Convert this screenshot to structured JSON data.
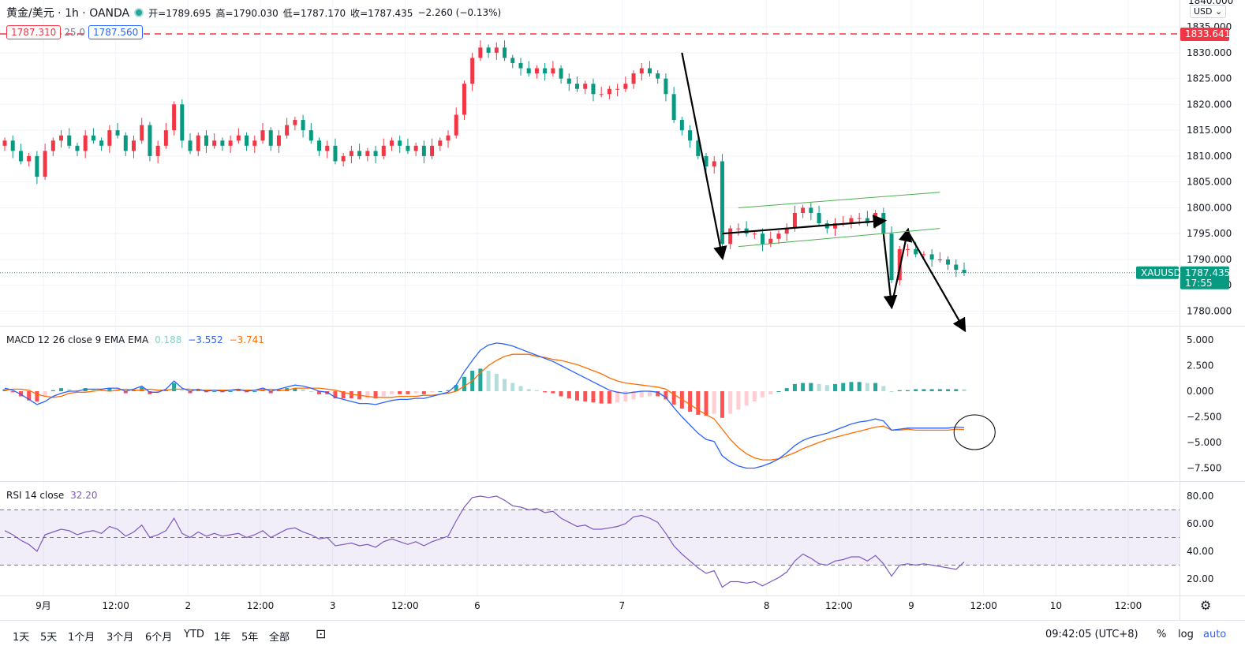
{
  "legend": {
    "symbol": "黄金/美元 · 1h · OANDA",
    "open": "开=1789.695",
    "high": "高=1790.030",
    "low": "低=1787.170",
    "close": "收=1787.435",
    "change": "−2.260 (−0.13%)"
  },
  "trade": {
    "sell": "1787.310",
    "spread": "25.0",
    "buy": "1787.560"
  },
  "currency": "USD",
  "macd_legend": {
    "label": "MACD 12 26 close 9 EMA EMA",
    "hist": "0.188",
    "macd": "−3.552",
    "signal": "−3.741"
  },
  "rsi_legend": {
    "label": "RSI 14 close",
    "value": "32.20"
  },
  "price_labels": {
    "top_partial": "1840.000",
    "alert": "1833.641",
    "symbol_tag": "XAUUSD",
    "last": "1787.435",
    "countdown": "17:55"
  },
  "range_buttons": [
    "1天",
    "5天",
    "1个月",
    "3个月",
    "6个月",
    "YTD",
    "1年",
    "5年",
    "全部"
  ],
  "compare_icon": "calendar-range-icon",
  "clock": "09:42:05 (UTC+8)",
  "scale_buttons": {
    "percent": "%",
    "log": "log",
    "auto": "auto"
  },
  "settings_icon": "gear-icon",
  "colors": {
    "up": "#f23645",
    "down": "#089981",
    "macd": "#2962ff",
    "signal": "#ff6d00",
    "rsi": "#7e57c2",
    "channel": "#4caf50"
  },
  "chart_data": [
    {
      "type": "candlestick",
      "title": "黄金/美元 1h OANDA",
      "ylim": [
        1776,
        1840
      ],
      "y_ticks": [
        "1780.000",
        "1785.000",
        "1790.000",
        "1795.000",
        "1800.000",
        "1805.000",
        "1810.000",
        "1815.000",
        "1820.000",
        "1825.000",
        "1830.000",
        "1835.000"
      ],
      "x_ticks": [
        "9月",
        "12:00",
        "2",
        "12:00",
        "3",
        "12:00",
        "6",
        "7",
        "8",
        "12:00",
        "9",
        "12:00",
        "10",
        "12:00"
      ],
      "x_tick_hours": [
        0,
        12,
        24,
        36,
        48,
        60,
        72,
        96,
        120,
        132,
        144,
        156,
        168,
        180
      ],
      "alert_level": 1833.641,
      "last_price": 1787.435,
      "closes": [
        1813,
        1811,
        1809,
        1810,
        1806,
        1811,
        1813,
        1814,
        1812,
        1811,
        1814,
        1813,
        1812,
        1815,
        1814,
        1811,
        1813,
        1816,
        1810,
        1812,
        1815,
        1820,
        1813,
        1811,
        1814,
        1812,
        1813,
        1812,
        1813,
        1814,
        1812,
        1813,
        1815,
        1812,
        1814,
        1816,
        1817,
        1815,
        1813,
        1811,
        1812,
        1809,
        1810,
        1811,
        1810,
        1811,
        1810,
        1812,
        1813,
        1812,
        1811,
        1812,
        1810,
        1812,
        1813,
        1814,
        1818,
        1824,
        1829,
        1831,
        1830,
        1831,
        1829,
        1828,
        1827,
        1826,
        1827,
        1826,
        1827,
        1825,
        1824,
        1823,
        1824,
        1822,
        1822,
        1823,
        1823,
        1824,
        1826,
        1827,
        1826,
        1825,
        1822,
        1817,
        1815,
        1813,
        1810,
        1808,
        1809,
        1793,
        1796,
        1796,
        1795,
        1795,
        1793,
        1794,
        1795,
        1796,
        1799,
        1800,
        1799,
        1797,
        1796,
        1797,
        1797,
        1798,
        1798,
        1797,
        1799,
        1795,
        1786,
        1792,
        1792,
        1791,
        1791,
        1790,
        1790,
        1789,
        1788,
        1787.4
      ],
      "rsi": [
        55,
        52,
        48,
        45,
        40,
        52,
        54,
        56,
        55,
        52,
        54,
        55,
        53,
        58,
        56,
        51,
        54,
        59,
        50,
        52,
        55,
        64,
        53,
        50,
        54,
        51,
        53,
        51,
        52,
        53,
        50,
        52,
        55,
        50,
        53,
        56,
        57,
        54,
        52,
        49,
        50,
        44,
        45,
        46,
        44,
        45,
        43,
        47,
        49,
        47,
        45,
        47,
        44,
        47,
        49,
        51,
        62,
        72,
        79,
        80,
        79,
        80,
        77,
        73,
        72,
        70,
        71,
        68,
        69,
        64,
        61,
        58,
        59,
        56,
        56,
        57,
        58,
        60,
        65,
        66,
        64,
        61,
        53,
        44,
        38,
        33,
        28,
        24,
        26,
        14,
        18,
        18,
        17,
        18,
        15,
        18,
        21,
        25,
        33,
        38,
        35,
        31,
        30,
        33,
        34,
        36,
        36,
        33,
        37,
        31,
        22,
        30,
        31,
        30,
        31,
        30,
        29,
        28,
        27,
        32.2
      ],
      "macd_hist": [
        0.2,
        -0.1,
        -0.5,
        -0.9,
        -1.0,
        -0.5,
        0.1,
        0.3,
        0.2,
        0.1,
        0.3,
        0.2,
        0.1,
        0.3,
        0.2,
        -0.2,
        0.1,
        0.4,
        -0.3,
        -0.2,
        0.1,
        0.8,
        0.1,
        -0.2,
        0.1,
        -0.1,
        0.0,
        -0.1,
        0.0,
        0.1,
        -0.1,
        0.0,
        0.2,
        -0.2,
        0.1,
        0.3,
        0.3,
        0.2,
        0.0,
        -0.3,
        -0.3,
        -0.7,
        -0.7,
        -0.7,
        -0.8,
        -0.7,
        -0.7,
        -0.5,
        -0.3,
        -0.3,
        -0.3,
        -0.2,
        -0.3,
        -0.1,
        0.0,
        0.1,
        0.6,
        1.4,
        2.0,
        2.2,
        2.0,
        1.7,
        1.2,
        0.8,
        0.5,
        0.2,
        0.1,
        -0.1,
        -0.2,
        -0.5,
        -0.7,
        -0.9,
        -1.0,
        -1.1,
        -1.2,
        -1.2,
        -1.1,
        -1.0,
        -0.8,
        -0.6,
        -0.5,
        -0.5,
        -0.8,
        -1.3,
        -1.7,
        -2.0,
        -2.3,
        -2.4,
        -2.2,
        -2.6,
        -2.2,
        -1.8,
        -1.4,
        -1.0,
        -0.6,
        -0.3,
        0.0,
        0.3,
        0.7,
        0.8,
        0.8,
        0.7,
        0.6,
        0.7,
        0.8,
        0.9,
        0.9,
        0.8,
        0.8,
        0.5,
        0.0,
        0.1,
        0.1,
        0.2,
        0.2,
        0.2,
        0.2,
        0.2,
        0.2,
        0.19
      ],
      "macd_line": [
        0.3,
        0.1,
        -0.3,
        -0.8,
        -1.3,
        -1.0,
        -0.5,
        -0.2,
        0.0,
        0.0,
        0.2,
        0.2,
        0.2,
        0.3,
        0.3,
        0.0,
        0.2,
        0.5,
        -0.1,
        -0.1,
        0.2,
        1.0,
        0.3,
        0.0,
        0.2,
        0.0,
        0.1,
        0.0,
        0.1,
        0.2,
        0.0,
        0.1,
        0.3,
        0.0,
        0.2,
        0.4,
        0.6,
        0.5,
        0.3,
        0.0,
        -0.1,
        -0.6,
        -0.8,
        -1.0,
        -1.2,
        -1.2,
        -1.3,
        -1.1,
        -0.9,
        -0.8,
        -0.8,
        -0.7,
        -0.7,
        -0.5,
        -0.3,
        -0.1,
        0.6,
        1.9,
        3.0,
        4.0,
        4.5,
        4.7,
        4.6,
        4.4,
        4.1,
        3.8,
        3.5,
        3.2,
        2.9,
        2.5,
        2.1,
        1.7,
        1.3,
        0.9,
        0.5,
        0.1,
        -0.1,
        -0.2,
        -0.1,
        0.0,
        0.0,
        -0.1,
        -0.6,
        -1.6,
        -2.5,
        -3.3,
        -4.1,
        -4.7,
        -4.9,
        -6.3,
        -6.9,
        -7.3,
        -7.5,
        -7.5,
        -7.3,
        -7.0,
        -6.6,
        -6.0,
        -5.3,
        -4.8,
        -4.5,
        -4.3,
        -4.1,
        -3.8,
        -3.5,
        -3.2,
        -3.0,
        -2.9,
        -2.7,
        -2.9,
        -3.8,
        -3.7,
        -3.6,
        -3.6,
        -3.6,
        -3.6,
        -3.6,
        -3.6,
        -3.5,
        -3.55
      ],
      "signal_line": [
        0.1,
        0.2,
        0.2,
        0.1,
        -0.3,
        -0.5,
        -0.6,
        -0.5,
        -0.2,
        -0.1,
        -0.1,
        0.0,
        0.1,
        0.0,
        0.1,
        0.2,
        0.1,
        0.1,
        0.2,
        0.1,
        0.1,
        0.2,
        0.2,
        0.2,
        0.1,
        0.1,
        0.1,
        0.1,
        0.1,
        0.1,
        0.1,
        0.1,
        0.1,
        0.2,
        0.1,
        0.1,
        0.3,
        0.3,
        0.3,
        0.3,
        0.2,
        0.1,
        -0.1,
        -0.3,
        -0.4,
        -0.5,
        -0.6,
        -0.6,
        -0.6,
        -0.5,
        -0.5,
        -0.5,
        -0.4,
        -0.4,
        -0.3,
        -0.2,
        0.0,
        0.5,
        1.0,
        1.8,
        2.5,
        3.0,
        3.4,
        3.6,
        3.6,
        3.6,
        3.4,
        3.3,
        3.1,
        3.0,
        2.8,
        2.6,
        2.3,
        2.0,
        1.7,
        1.3,
        1.0,
        0.8,
        0.7,
        0.6,
        0.5,
        0.4,
        0.2,
        -0.3,
        -0.8,
        -1.3,
        -1.8,
        -2.3,
        -2.7,
        -3.7,
        -4.7,
        -5.5,
        -6.1,
        -6.5,
        -6.7,
        -6.7,
        -6.6,
        -6.3,
        -6.0,
        -5.6,
        -5.3,
        -5.0,
        -4.7,
        -4.5,
        -4.3,
        -4.1,
        -3.9,
        -3.7,
        -3.5,
        -3.4,
        -3.8,
        -3.8,
        -3.7,
        -3.8,
        -3.8,
        -3.8,
        -3.8,
        -3.8,
        -3.7,
        -3.74
      ],
      "annotations": [
        "down-arrow",
        "channel-up",
        "down-arrow",
        "up-arrow",
        "down-arrow",
        "circle"
      ]
    },
    {
      "type": "line",
      "title": "MACD 12 26 close 9 EMA EMA",
      "ylim": [
        -8.5,
        5.5
      ],
      "y_ticks": [
        "5.000",
        "2.500",
        "0.000",
        "−2.500",
        "−5.000",
        "−7.500"
      ]
    },
    {
      "type": "line",
      "title": "RSI 14 close",
      "ylim": [
        10,
        85
      ],
      "y_ticks": [
        "80.00",
        "60.00",
        "40.00",
        "20.00"
      ],
      "bands": [
        30,
        50,
        70
      ]
    }
  ]
}
